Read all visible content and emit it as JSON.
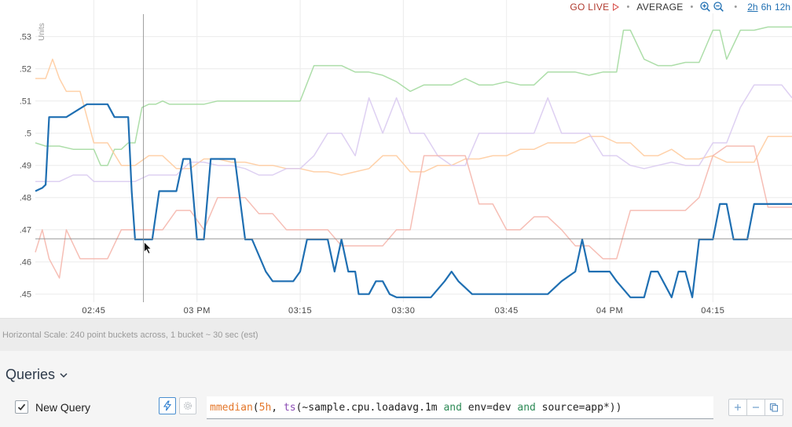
{
  "toolbar": {
    "go_live": "GO LIVE",
    "aggregation": "AVERAGE",
    "zoom_in_icon": "zoom-in-icon",
    "zoom_out_icon": "zoom-out-icon",
    "ranges": [
      {
        "label": "2h",
        "active": true
      },
      {
        "label": "6h",
        "active": false
      },
      {
        "label": "12h",
        "active": false
      }
    ]
  },
  "chart_data": {
    "type": "line",
    "title": "",
    "ylabel": "Units",
    "xlabel": "",
    "ylim": [
      0.4475,
      0.5365
    ],
    "y_ticks": [
      ".45",
      ".46",
      ".47",
      ".48",
      ".49",
      ".5",
      ".51",
      ".52",
      ".53"
    ],
    "y_tick_values": [
      0.45,
      0.46,
      0.47,
      0.48,
      0.49,
      0.5,
      0.51,
      0.52,
      0.53
    ],
    "x_ticks": [
      "02:45",
      "03 PM",
      "03:15",
      "03:30",
      "03:45",
      "04 PM",
      "04:15"
    ],
    "x_tick_minutes": [
      0,
      15,
      30,
      45,
      60,
      75,
      90
    ],
    "xlim_minutes": [
      -8.5,
      101.5
    ],
    "grid": true,
    "hover_time_minutes": 7.2,
    "hover_value": 0.4672,
    "series": [
      {
        "color": "#1f6fb2",
        "highlight": true,
        "x": [
          -8.5,
          -7.5,
          -7,
          -6.5,
          -5.5,
          -4,
          -1,
          0,
          2,
          3,
          4,
          5,
          5.5,
          6,
          7,
          8,
          8.5,
          9.5,
          10,
          12,
          13,
          14,
          15,
          16,
          17,
          18,
          19,
          20,
          20.5,
          22,
          23,
          25,
          26,
          27,
          28,
          29,
          30,
          31,
          32,
          33,
          34,
          35,
          36,
          37,
          38,
          38.5,
          39,
          39.5,
          40,
          41,
          42,
          43,
          44,
          45,
          47,
          48,
          49,
          51,
          52,
          53,
          55,
          56,
          57,
          58,
          60,
          61,
          63,
          65,
          66,
          68,
          70,
          71,
          72,
          73,
          74,
          75,
          76,
          78,
          79,
          80,
          81,
          82,
          84,
          85,
          86,
          87,
          88,
          89,
          90,
          91,
          92,
          93,
          94,
          95,
          96,
          97,
          98,
          99,
          100,
          101.5
        ],
        "y": [
          0.482,
          0.483,
          0.484,
          0.505,
          0.505,
          0.505,
          0.509,
          0.509,
          0.509,
          0.505,
          0.505,
          0.505,
          0.482,
          0.467,
          0.467,
          0.467,
          0.467,
          0.482,
          0.482,
          0.482,
          0.492,
          0.492,
          0.467,
          0.467,
          0.492,
          0.492,
          0.492,
          0.492,
          0.492,
          0.467,
          0.467,
          0.457,
          0.454,
          0.454,
          0.454,
          0.454,
          0.457,
          0.467,
          0.467,
          0.467,
          0.467,
          0.457,
          0.467,
          0.457,
          0.457,
          0.45,
          0.45,
          0.45,
          0.45,
          0.454,
          0.454,
          0.45,
          0.449,
          0.449,
          0.449,
          0.449,
          0.449,
          0.454,
          0.457,
          0.454,
          0.45,
          0.45,
          0.45,
          0.45,
          0.45,
          0.45,
          0.45,
          0.45,
          0.45,
          0.454,
          0.457,
          0.467,
          0.457,
          0.457,
          0.457,
          0.457,
          0.454,
          0.449,
          0.449,
          0.449,
          0.457,
          0.457,
          0.449,
          0.457,
          0.457,
          0.449,
          0.467,
          0.467,
          0.467,
          0.478,
          0.478,
          0.467,
          0.467,
          0.467,
          0.478,
          0.478,
          0.478,
          0.478,
          0.478,
          0.478
        ]
      },
      {
        "color": "#9fd89a",
        "highlight": false,
        "x": [
          -8.5,
          -7,
          -5,
          -3,
          -1,
          0,
          1,
          2,
          3,
          4,
          5,
          6,
          7,
          8,
          9,
          10,
          11,
          12,
          14,
          16,
          18,
          20,
          22,
          24,
          26,
          30,
          32,
          34,
          36,
          38,
          40,
          42,
          44,
          46,
          48,
          50,
          52,
          54,
          56,
          58,
          60,
          62,
          64,
          66,
          68,
          70,
          72,
          74,
          76,
          77,
          78,
          80,
          82,
          84,
          86,
          88,
          90,
          91,
          92,
          94,
          96,
          98,
          100,
          101.5
        ],
        "y": [
          0.497,
          0.496,
          0.496,
          0.495,
          0.495,
          0.495,
          0.49,
          0.49,
          0.495,
          0.495,
          0.497,
          0.497,
          0.508,
          0.509,
          0.509,
          0.51,
          0.509,
          0.509,
          0.509,
          0.509,
          0.51,
          0.51,
          0.51,
          0.51,
          0.51,
          0.51,
          0.521,
          0.521,
          0.521,
          0.519,
          0.519,
          0.518,
          0.516,
          0.513,
          0.515,
          0.515,
          0.515,
          0.517,
          0.515,
          0.515,
          0.516,
          0.515,
          0.515,
          0.519,
          0.519,
          0.519,
          0.518,
          0.519,
          0.519,
          0.532,
          0.532,
          0.523,
          0.521,
          0.521,
          0.522,
          0.522,
          0.532,
          0.532,
          0.523,
          0.532,
          0.532,
          0.533,
          0.533,
          0.533
        ]
      },
      {
        "color": "#ffc99a",
        "highlight": false,
        "x": [
          -8.5,
          -7,
          -6,
          -5,
          -4,
          -2,
          0,
          2,
          4,
          6,
          8,
          10,
          12,
          14,
          16,
          18,
          20,
          22,
          24,
          26,
          28,
          30,
          32,
          34,
          36,
          38,
          40,
          42,
          44,
          46,
          48,
          50,
          52,
          54,
          56,
          58,
          60,
          62,
          64,
          66,
          68,
          70,
          72,
          74,
          76,
          78,
          80,
          82,
          84,
          86,
          88,
          90,
          92,
          94,
          96,
          98,
          100,
          101.5
        ],
        "y": [
          0.517,
          0.517,
          0.523,
          0.517,
          0.513,
          0.513,
          0.497,
          0.497,
          0.49,
          0.49,
          0.493,
          0.493,
          0.489,
          0.489,
          0.492,
          0.492,
          0.491,
          0.491,
          0.49,
          0.49,
          0.489,
          0.489,
          0.488,
          0.488,
          0.487,
          0.488,
          0.489,
          0.493,
          0.493,
          0.488,
          0.488,
          0.49,
          0.49,
          0.492,
          0.492,
          0.493,
          0.493,
          0.495,
          0.495,
          0.497,
          0.497,
          0.497,
          0.499,
          0.499,
          0.497,
          0.497,
          0.493,
          0.493,
          0.495,
          0.492,
          0.492,
          0.493,
          0.491,
          0.491,
          0.491,
          0.499,
          0.499,
          0.499
        ]
      },
      {
        "color": "#d8c8f0",
        "highlight": false,
        "x": [
          -8.5,
          -7,
          -5,
          -3,
          -1,
          0,
          2,
          4,
          6,
          8,
          10,
          12,
          14,
          16,
          18,
          20,
          22,
          24,
          26,
          28,
          30,
          32,
          34,
          36,
          38,
          40,
          42,
          44,
          46,
          48,
          50,
          52,
          54,
          56,
          58,
          60,
          62,
          64,
          66,
          68,
          70,
          72,
          74,
          76,
          78,
          80,
          82,
          84,
          86,
          88,
          90,
          92,
          94,
          96,
          98,
          100,
          101.5
        ],
        "y": [
          0.485,
          0.485,
          0.485,
          0.487,
          0.487,
          0.485,
          0.485,
          0.485,
          0.485,
          0.487,
          0.487,
          0.487,
          0.491,
          0.491,
          0.49,
          0.49,
          0.489,
          0.487,
          0.487,
          0.489,
          0.489,
          0.493,
          0.5,
          0.5,
          0.493,
          0.511,
          0.5,
          0.511,
          0.5,
          0.5,
          0.493,
          0.49,
          0.49,
          0.5,
          0.5,
          0.5,
          0.5,
          0.5,
          0.511,
          0.5,
          0.5,
          0.5,
          0.493,
          0.493,
          0.49,
          0.489,
          0.49,
          0.491,
          0.49,
          0.49,
          0.497,
          0.497,
          0.508,
          0.515,
          0.515,
          0.515,
          0.511
        ]
      },
      {
        "color": "#f4b3a8",
        "highlight": false,
        "x": [
          -8.5,
          -7.5,
          -6.5,
          -5,
          -4,
          -2,
          0,
          2,
          4,
          6,
          8,
          10,
          12,
          14,
          16,
          18,
          20,
          22,
          24,
          26,
          28,
          30,
          32,
          34,
          36,
          38,
          40,
          42,
          44,
          46,
          48,
          50,
          52,
          54,
          56,
          58,
          60,
          62,
          64,
          66,
          68,
          70,
          72,
          74,
          76,
          78,
          80,
          82,
          84,
          86,
          88,
          90,
          92,
          94,
          96,
          98,
          100,
          101.5
        ],
        "y": [
          0.463,
          0.47,
          0.461,
          0.455,
          0.47,
          0.461,
          0.461,
          0.461,
          0.47,
          0.47,
          0.47,
          0.47,
          0.476,
          0.476,
          0.47,
          0.48,
          0.48,
          0.48,
          0.475,
          0.475,
          0.47,
          0.47,
          0.47,
          0.47,
          0.465,
          0.465,
          0.465,
          0.465,
          0.47,
          0.47,
          0.493,
          0.493,
          0.493,
          0.493,
          0.478,
          0.478,
          0.47,
          0.47,
          0.474,
          0.474,
          0.47,
          0.465,
          0.465,
          0.461,
          0.461,
          0.476,
          0.476,
          0.476,
          0.476,
          0.476,
          0.48,
          0.493,
          0.496,
          0.496,
          0.496,
          0.477,
          0.477,
          0.477
        ]
      }
    ]
  },
  "scale_note": "Horizontal Scale: 240 point buckets across, 1 bucket ~ 30 sec (est)",
  "queries": {
    "title": "Queries",
    "title_icon": "chevron-down-icon",
    "rows": [
      {
        "checked": true,
        "name": "New Query",
        "expression": "mmedian(5h, ts(~sample.cpu.loadavg.1m and env=dev and source=app*))"
      }
    ]
  }
}
